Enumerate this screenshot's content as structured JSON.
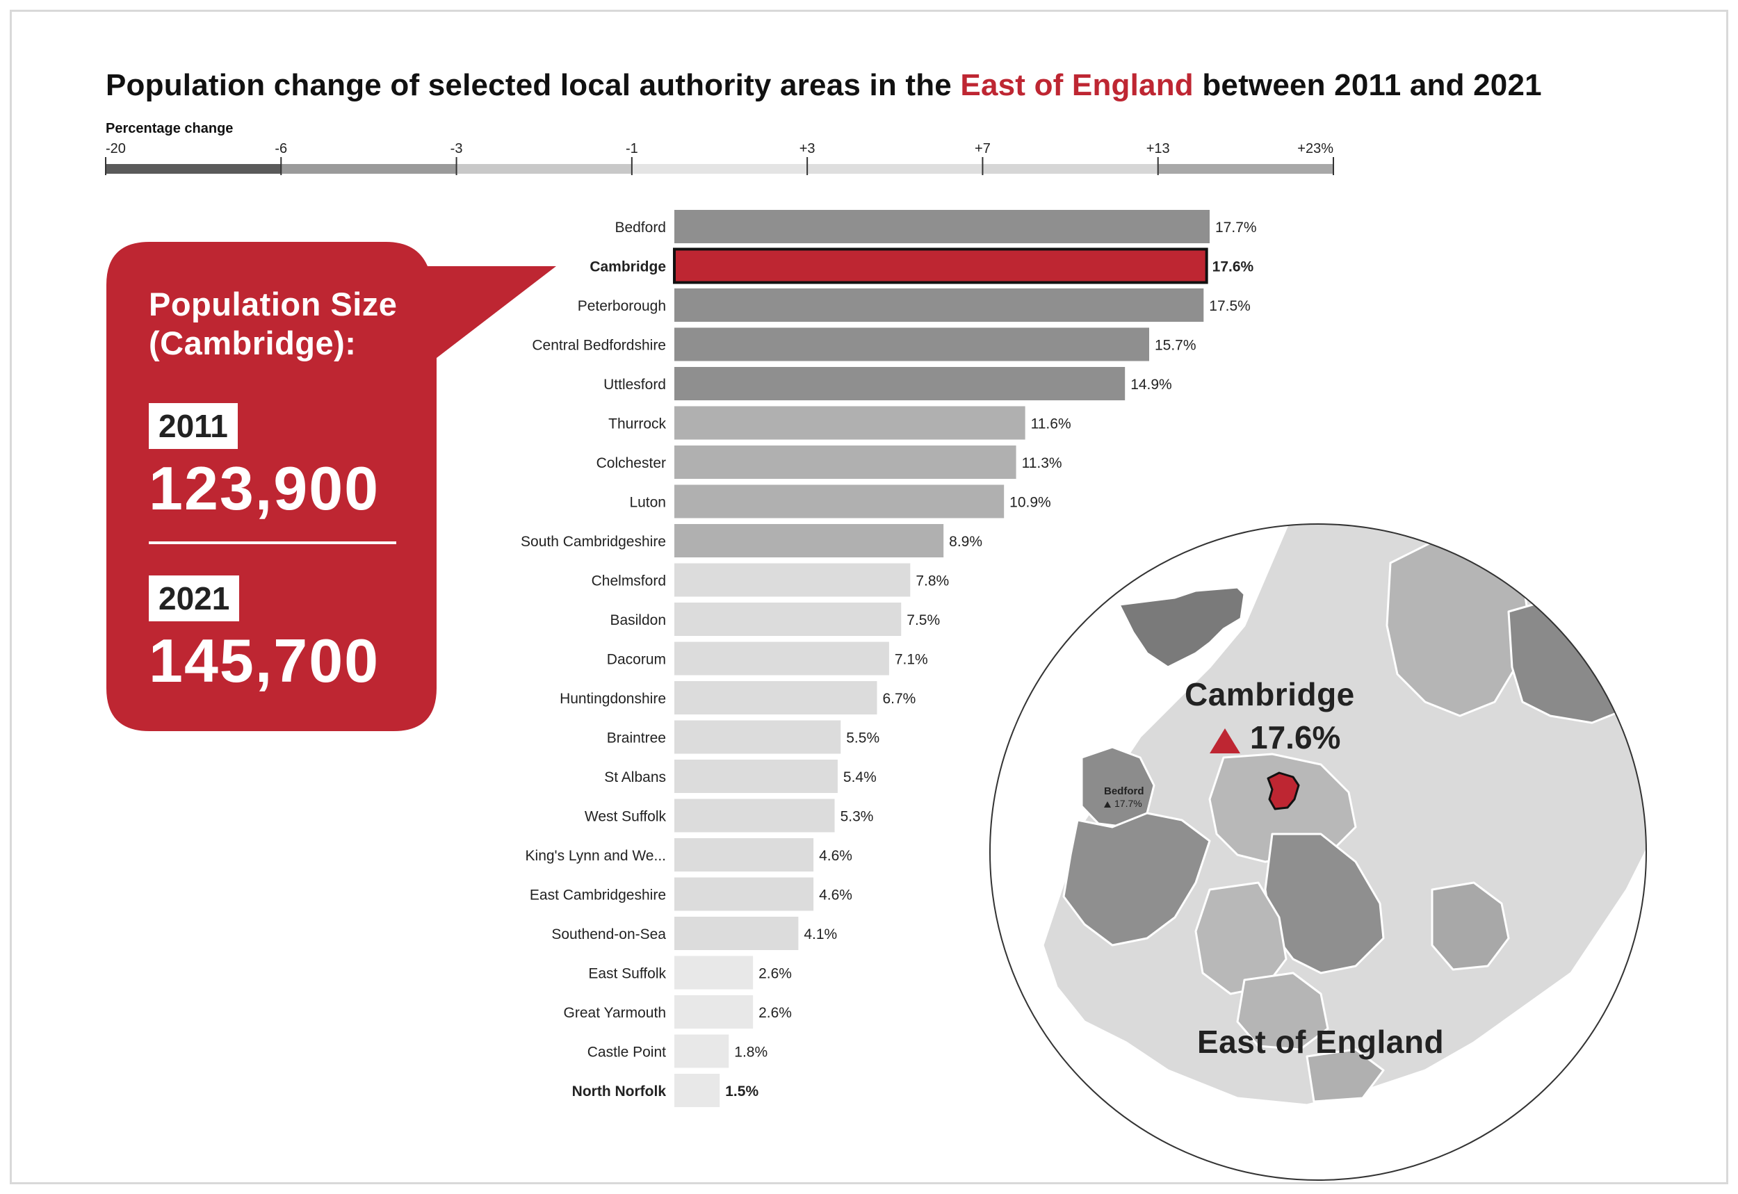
{
  "title": {
    "prefix": "Population change of selected local authority areas in the ",
    "highlight": "East of England",
    "suffix": " between 2011 and 2021"
  },
  "colors": {
    "accent": "#be2632",
    "bar_dark": "#8f8f8f",
    "bar_mid": "#b0b0b0",
    "bar_light": "#dcdcdc",
    "bar_lightest": "#e8e8e8"
  },
  "legend": {
    "title": "Percentage change",
    "ticks": [
      "-20",
      "-6",
      "-3",
      "-1",
      "+3",
      "+7",
      "+13",
      "+23%"
    ],
    "band_colors": [
      "#5a5a5a",
      "#9a9a9a",
      "#c8c8c8",
      "#e4e4e4",
      "#dedede",
      "#d6d6d6",
      "#a8a8a8",
      "#929292"
    ]
  },
  "callout": {
    "title_line1": "Population Size",
    "title_line2": "(Cambridge):",
    "year1": "2011",
    "value1": "123,900",
    "year2": "2021",
    "value2": "145,700"
  },
  "map": {
    "main_label": "Cambridge",
    "main_value": "17.6%",
    "secondary_label": "Bedford",
    "secondary_value": "17.7%",
    "region_label": "East of England",
    "arrow_icon": "up-triangle-icon"
  },
  "chart_data": {
    "type": "bar",
    "orientation": "horizontal",
    "title": "Population change of selected local authority areas in the East of England between 2011 and 2021",
    "xlabel": "Percentage change",
    "unit": "%",
    "highlight": "Cambridge",
    "bold_labels": [
      "Cambridge",
      "North Norfolk"
    ],
    "categories": [
      "Bedford",
      "Cambridge",
      "Peterborough",
      "Central Bedfordshire",
      "Uttlesford",
      "Thurrock",
      "Colchester",
      "Luton",
      "South Cambridgeshire",
      "Chelmsford",
      "Basildon",
      "Dacorum",
      "Huntingdonshire",
      "Braintree",
      "St Albans",
      "West Suffolk",
      "King's Lynn and We...",
      "East Cambridgeshire",
      "Southend-on-Sea",
      "East Suffolk",
      "Great Yarmouth",
      "Castle Point",
      "North Norfolk"
    ],
    "values": [
      17.7,
      17.6,
      17.5,
      15.7,
      14.9,
      11.6,
      11.3,
      10.9,
      8.9,
      7.8,
      7.5,
      7.1,
      6.7,
      5.5,
      5.4,
      5.3,
      4.6,
      4.6,
      4.1,
      2.6,
      2.6,
      1.8,
      1.5
    ],
    "value_labels": [
      "17.7%",
      "17.6%",
      "17.5%",
      "15.7%",
      "14.9%",
      "11.6%",
      "11.3%",
      "10.9%",
      "8.9%",
      "7.8%",
      "7.5%",
      "7.1%",
      "6.7%",
      "5.5%",
      "5.4%",
      "5.3%",
      "4.6%",
      "4.6%",
      "4.1%",
      "2.6%",
      "2.6%",
      "1.8%",
      "1.5%"
    ],
    "xlim": [
      0,
      17.7
    ]
  }
}
